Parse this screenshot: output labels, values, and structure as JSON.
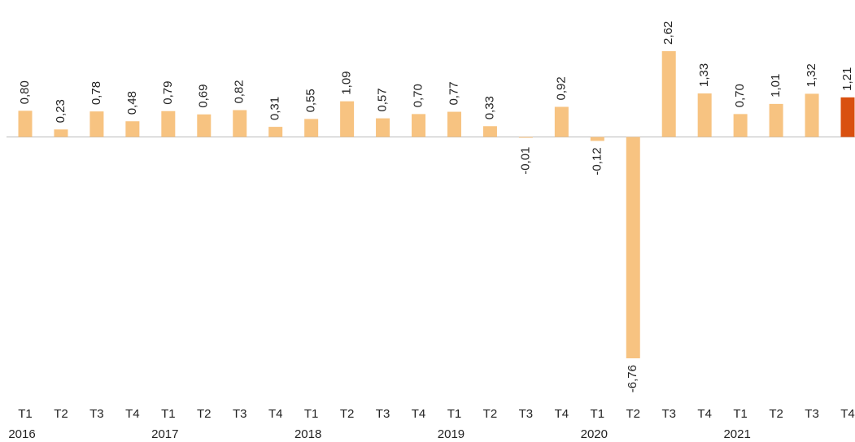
{
  "chart_data": {
    "type": "bar",
    "categories": [
      "T1",
      "T2",
      "T3",
      "T4",
      "T1",
      "T2",
      "T3",
      "T4",
      "T1",
      "T2",
      "T3",
      "T4",
      "T1",
      "T2",
      "T3",
      "T4",
      "T1",
      "T2",
      "T3",
      "T4",
      "T1",
      "T2",
      "T3",
      "T4"
    ],
    "groups": [
      "2016",
      "2017",
      "2018",
      "2019",
      "2020",
      "2021"
    ],
    "values": [
      0.8,
      0.23,
      0.78,
      0.48,
      0.79,
      0.69,
      0.82,
      0.31,
      0.55,
      1.09,
      0.57,
      0.7,
      0.77,
      0.33,
      -0.01,
      0.92,
      -0.12,
      -6.76,
      2.62,
      1.33,
      0.7,
      1.01,
      1.32,
      1.21
    ],
    "value_labels": [
      "0,80",
      "0,23",
      "0,78",
      "0,48",
      "0,79",
      "0,69",
      "0,82",
      "0,31",
      "0,55",
      "1,09",
      "0,57",
      "0,70",
      "0,77",
      "0,33",
      "-0,01",
      "0,92",
      "-0,12",
      "-6,76",
      "2,62",
      "1,33",
      "0,70",
      "1,01",
      "1,32",
      "1,21"
    ],
    "colors": [
      "#f7c381",
      "#f7c381",
      "#f7c381",
      "#f7c381",
      "#f7c381",
      "#f7c381",
      "#f7c381",
      "#f7c381",
      "#f7c381",
      "#f7c381",
      "#f7c381",
      "#f7c381",
      "#f7c381",
      "#f7c381",
      "#f7c381",
      "#f7c381",
      "#f7c381",
      "#f7c381",
      "#f7c381",
      "#f7c381",
      "#f7c381",
      "#f7c381",
      "#f7c381",
      "#d9500f"
    ]
  }
}
